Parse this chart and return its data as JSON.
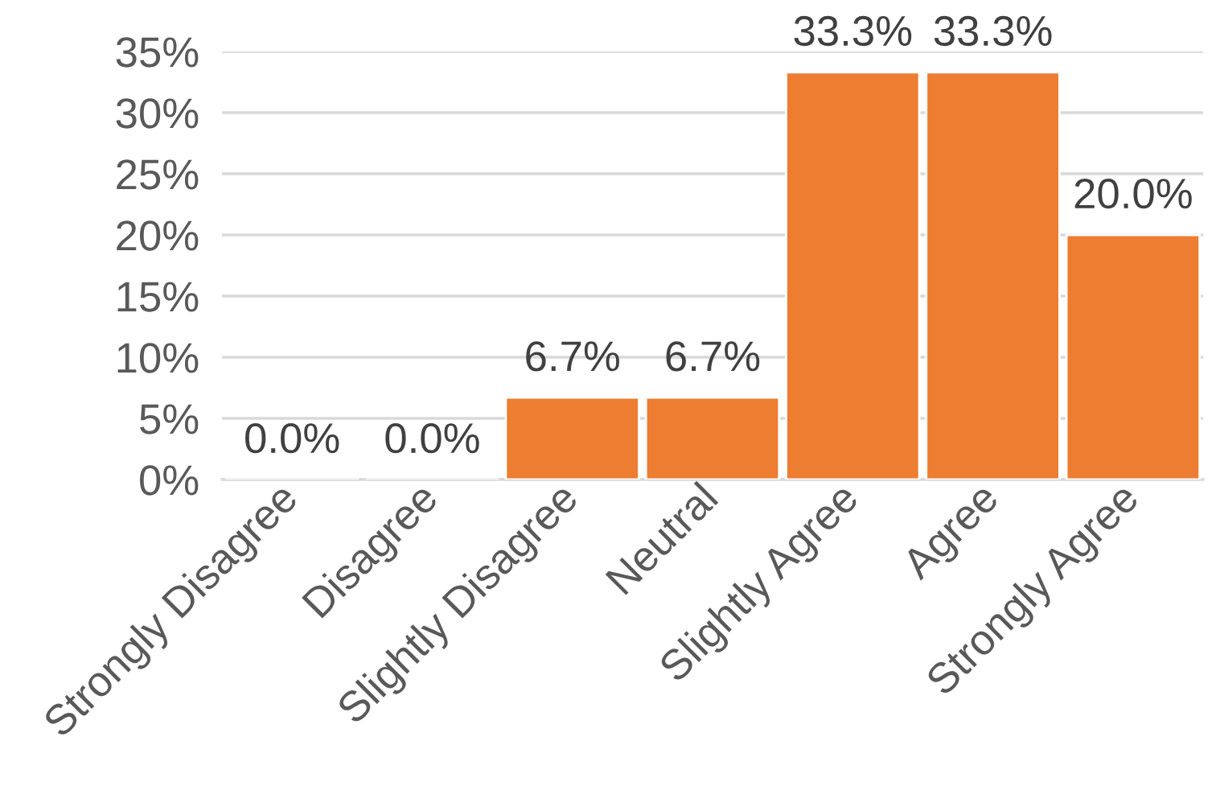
{
  "chart_data": {
    "type": "bar",
    "categories": [
      "Strongly Disagree",
      "Disagree",
      "Slightly Disagree",
      "Neutral",
      "Slightly Agree",
      "Agree",
      "Strongly Agree"
    ],
    "values": [
      0.0,
      0.0,
      6.7,
      6.7,
      33.3,
      33.3,
      20.0
    ],
    "value_labels": [
      "0.0%",
      "0.0%",
      "6.7%",
      "6.7%",
      "33.3%",
      "33.3%",
      "20.0%"
    ],
    "color": "#ed7d31",
    "ylim": [
      0,
      35
    ],
    "yticks": [
      {
        "value": 0,
        "label": "0%"
      },
      {
        "value": 5,
        "label": "5%"
      },
      {
        "value": 10,
        "label": "10%"
      },
      {
        "value": 15,
        "label": "15%"
      },
      {
        "value": 20,
        "label": "20%"
      },
      {
        "value": 25,
        "label": "25%"
      },
      {
        "value": 30,
        "label": "30%"
      },
      {
        "value": 35,
        "label": "35%"
      }
    ],
    "grid": "y"
  }
}
